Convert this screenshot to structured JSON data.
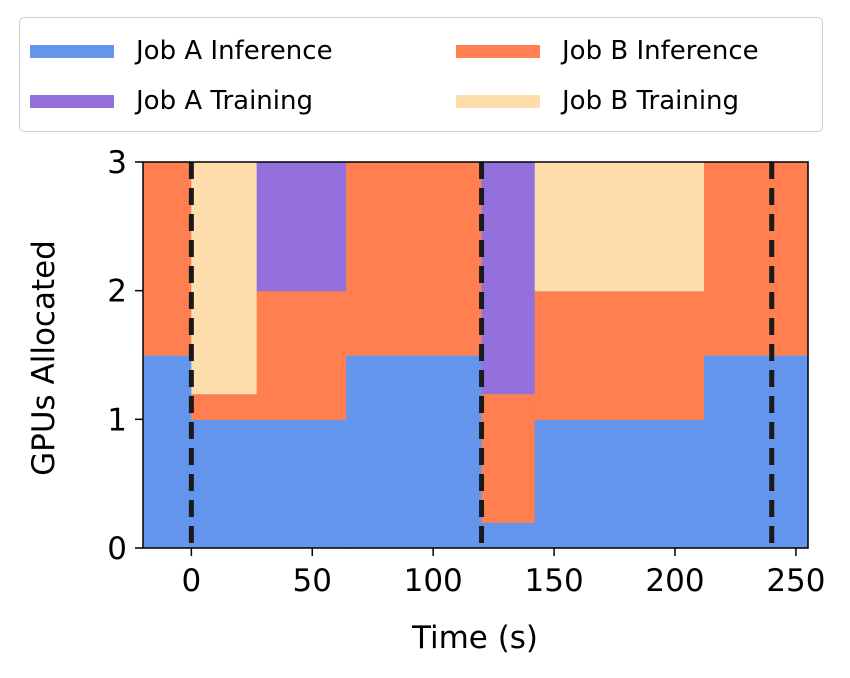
{
  "chart_data": {
    "type": "area",
    "xlabel": "Time (s)",
    "ylabel": "GPUs Allocated",
    "xlim": [
      -20,
      255
    ],
    "ylim": [
      0,
      3
    ],
    "xticks": [
      0,
      50,
      100,
      150,
      200,
      250
    ],
    "yticks": [
      0,
      1,
      2,
      3
    ],
    "grid": false,
    "legend_position": "top",
    "legend_entries": [
      "Job A Inference",
      "Job B Inference",
      "Job A Training",
      "Job B Training"
    ],
    "stack_order": [
      "Job A Inference",
      "Job B Inference",
      "Job A Training",
      "Job B Training"
    ],
    "segments": [
      {
        "x0": -20,
        "x1": 0,
        "Job A Inference": 1.5,
        "Job B Inference": 1.5,
        "Job A Training": 0,
        "Job B Training": 0
      },
      {
        "x0": 0,
        "x1": 2,
        "Job A Inference": 1.0,
        "Job B Inference": 0.2,
        "Job A Training": 0,
        "Job B Training": 1.8
      },
      {
        "x0": 2,
        "x1": 27,
        "Job A Inference": 1.0,
        "Job B Inference": 0.2,
        "Job A Training": 0,
        "Job B Training": 1.8
      },
      {
        "x0": 27,
        "x1": 64,
        "Job A Inference": 1.0,
        "Job B Inference": 1.0,
        "Job A Training": 1.0,
        "Job B Training": 0
      },
      {
        "x0": 64,
        "x1": 120,
        "Job A Inference": 1.5,
        "Job B Inference": 1.5,
        "Job A Training": 0,
        "Job B Training": 0
      },
      {
        "x0": 120,
        "x1": 142,
        "Job A Inference": 0.2,
        "Job B Inference": 1.0,
        "Job A Training": 1.8,
        "Job B Training": 0
      },
      {
        "x0": 142,
        "x1": 212,
        "Job A Inference": 1.0,
        "Job B Inference": 1.0,
        "Job A Training": 0,
        "Job B Training": 1.0
      },
      {
        "x0": 212,
        "x1": 255,
        "Job A Inference": 1.5,
        "Job B Inference": 1.5,
        "Job A Training": 0,
        "Job B Training": 0
      }
    ],
    "vlines": [
      0,
      120,
      240
    ],
    "colors": {
      "Job A Inference": "#6495ed",
      "Job B Inference": "#ff7f50",
      "Job A Training": "#9370db",
      "Job B Training": "#ffdead",
      "vline": "#1a1a1a"
    }
  }
}
